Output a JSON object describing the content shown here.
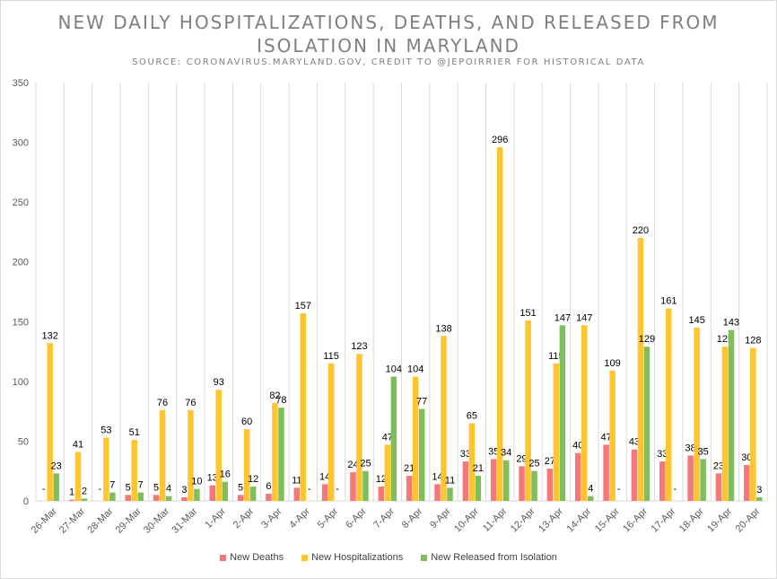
{
  "chart_data": {
    "type": "bar",
    "title": "NEW DAILY HOSPITALIZATIONS, DEATHS, AND RELEASED FROM ISOLATION IN MARYLAND",
    "subtitle": "SOURCE: CORONAVIRUS.MARYLAND.GOV, CREDIT TO @JEPOIRRIER FOR HISTORICAL DATA",
    "categories": [
      "26-Mar",
      "27-Mar",
      "28-Mar",
      "29-Mar",
      "30-Mar",
      "31-Mar",
      "1-Apr",
      "2-Apr",
      "3-Apr",
      "4-Apr",
      "5-Apr",
      "6-Apr",
      "7-Apr",
      "8-Apr",
      "9-Apr",
      "10-Apr",
      "11-Apr",
      "12-Apr",
      "13-Apr",
      "14-Apr",
      "15-Apr",
      "16-Apr",
      "17-Apr",
      "18-Apr",
      "19-Apr",
      "20-Apr"
    ],
    "ylim": [
      0,
      350
    ],
    "yticks": [
      0,
      50,
      100,
      150,
      200,
      250,
      300,
      350
    ],
    "grid": true,
    "legend_position": "bottom",
    "series": [
      {
        "name": "New Deaths",
        "color": "#f4777a",
        "values": [
          null,
          1,
          null,
          5,
          5,
          3,
          13,
          5,
          6,
          11,
          14,
          24,
          12,
          21,
          14,
          33,
          35,
          29,
          27,
          40,
          47,
          43,
          33,
          38,
          23,
          30
        ],
        "labels": [
          "-",
          "1",
          "-",
          "5",
          "5",
          "3",
          "13",
          "5",
          "6",
          "11",
          "14",
          "24",
          "12",
          "21",
          "14",
          "33",
          "35",
          "29",
          "27",
          "40",
          "47",
          "43",
          "33",
          "38",
          "23",
          "30"
        ]
      },
      {
        "name": "New Hospitalizations",
        "color": "#ffc42e",
        "values": [
          132,
          41,
          53,
          51,
          76,
          76,
          93,
          60,
          82,
          157,
          115,
          123,
          47,
          104,
          138,
          65,
          296,
          151,
          115,
          147,
          109,
          220,
          161,
          145,
          129,
          128
        ],
        "labels": [
          "132",
          "41",
          "53",
          "51",
          "76",
          "76",
          "93",
          "60",
          "82",
          "157",
          "115",
          "123",
          "47",
          "104",
          "138",
          "65",
          "296",
          "151",
          "115",
          "147",
          "109",
          "220",
          "161",
          "145",
          "129",
          "128"
        ]
      },
      {
        "name": "New Released from Isolation",
        "color": "#7fbe5b",
        "values": [
          23,
          2,
          7,
          7,
          4,
          10,
          16,
          12,
          78,
          null,
          null,
          25,
          104,
          77,
          11,
          21,
          34,
          25,
          147,
          4,
          null,
          129,
          null,
          35,
          143,
          3
        ],
        "labels": [
          "23",
          "2",
          "7",
          "7",
          "4",
          "10",
          "16",
          "12",
          "78",
          "-",
          "-",
          "25",
          "104",
          "77",
          "11",
          "21",
          "34",
          "25",
          "147",
          "4",
          "-",
          "129",
          "-",
          "35",
          "143",
          "3"
        ]
      }
    ]
  }
}
